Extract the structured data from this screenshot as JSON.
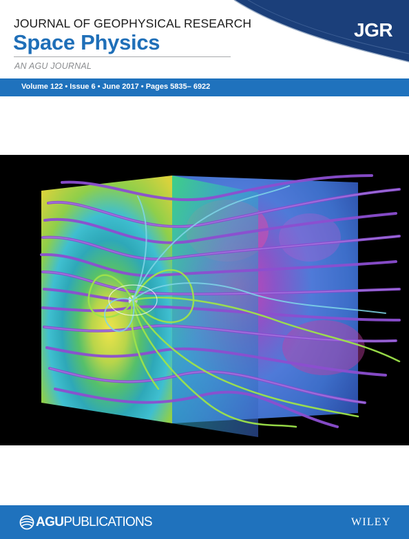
{
  "header": {
    "journal_line1": "JOURNAL OF GEOPHYSICAL RESEARCH",
    "journal_line2": "Space Physics",
    "tagline": "AN AGU JOURNAL",
    "logo_text": "JGR"
  },
  "issue": {
    "text": "Volume 122 • Issue 6 • June 2017 • Pages 5835– 6922"
  },
  "footer": {
    "agu_bold": "AGU",
    "agu_regular": "PUBLICATIONS",
    "publisher": "WILEY"
  },
  "colors": {
    "brand_blue": "#1f72bd",
    "title_blue": "#1f6fb8",
    "logo_navy": "#1b3f7a"
  }
}
